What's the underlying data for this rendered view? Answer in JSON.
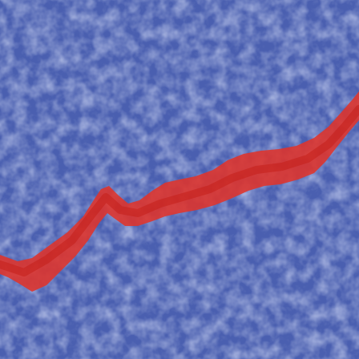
{
  "image": {
    "subject": "crack-segmentation-overlay",
    "colors": {
      "background_overlay": "#4a5fb0",
      "stone_light": "#a9b3e0",
      "stone_mid": "#7f8ccc",
      "stone_dark": "#3f4f9c",
      "mask": "#e0332a",
      "mask_core": "#c41f1a"
    }
  }
}
